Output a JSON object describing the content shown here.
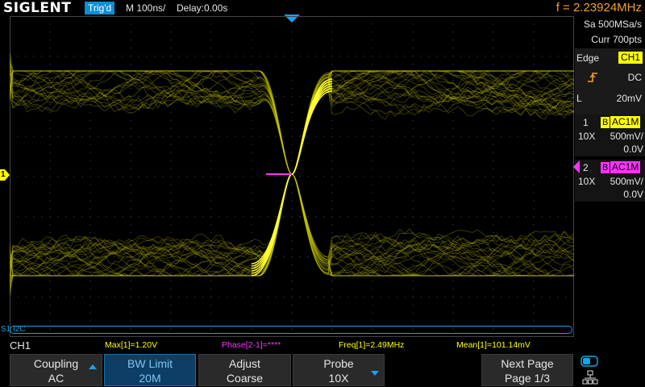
{
  "topbar": {
    "brand": "SIGLENT",
    "trigger_status": "Trig'd",
    "timebase": "M 100ns/",
    "delay": "Delay:0.00s",
    "frequency": "f = 2.23924MHz"
  },
  "acquisition": {
    "sample_rate": "Sa 500MSa/s",
    "memory": "Curr 700pts"
  },
  "trigger": {
    "type": "Edge",
    "source": "CH1",
    "slope_icon": "rising-edge-icon",
    "coupling": "DC",
    "level_label": "L",
    "level_value": "20mV"
  },
  "channels": [
    {
      "number": "1",
      "bw_flag": "B",
      "coupling": "AC1M",
      "probe": "10X",
      "scale": "500mV/",
      "offset": "0.0V",
      "color": "#ffff00"
    },
    {
      "number": "2",
      "bw_flag": "B",
      "coupling": "AC1M",
      "probe": "10X",
      "scale": "500mV/",
      "offset": "0.0V",
      "color": "#ff33ff"
    }
  ],
  "waveform": {
    "channel_marker": "1",
    "bus_label": "S1 I2C"
  },
  "measurements": {
    "current_channel": "CH1",
    "max": "Max[1]=1.20V",
    "phase": "Phase[2-1]=****",
    "freq": "Freq[1]=2.49MHz",
    "mean": "Mean[1]=101.14mV"
  },
  "softkeys": [
    {
      "line1": "Coupling",
      "line2": "AC",
      "arrow": "up"
    },
    {
      "line1": "BW Limit",
      "line2": "20M",
      "active": true
    },
    {
      "line1": "Adjust",
      "line2": "Coarse"
    },
    {
      "line1": "Probe",
      "line2": "10X",
      "arrow": "down"
    },
    {
      "line1": "Next Page",
      "line2": "Page 1/3"
    }
  ],
  "colors": {
    "accent": "#0a8fd6",
    "ch1": "#ffff00",
    "ch2": "#ff33ff",
    "frequency_text": "#f0a030"
  }
}
